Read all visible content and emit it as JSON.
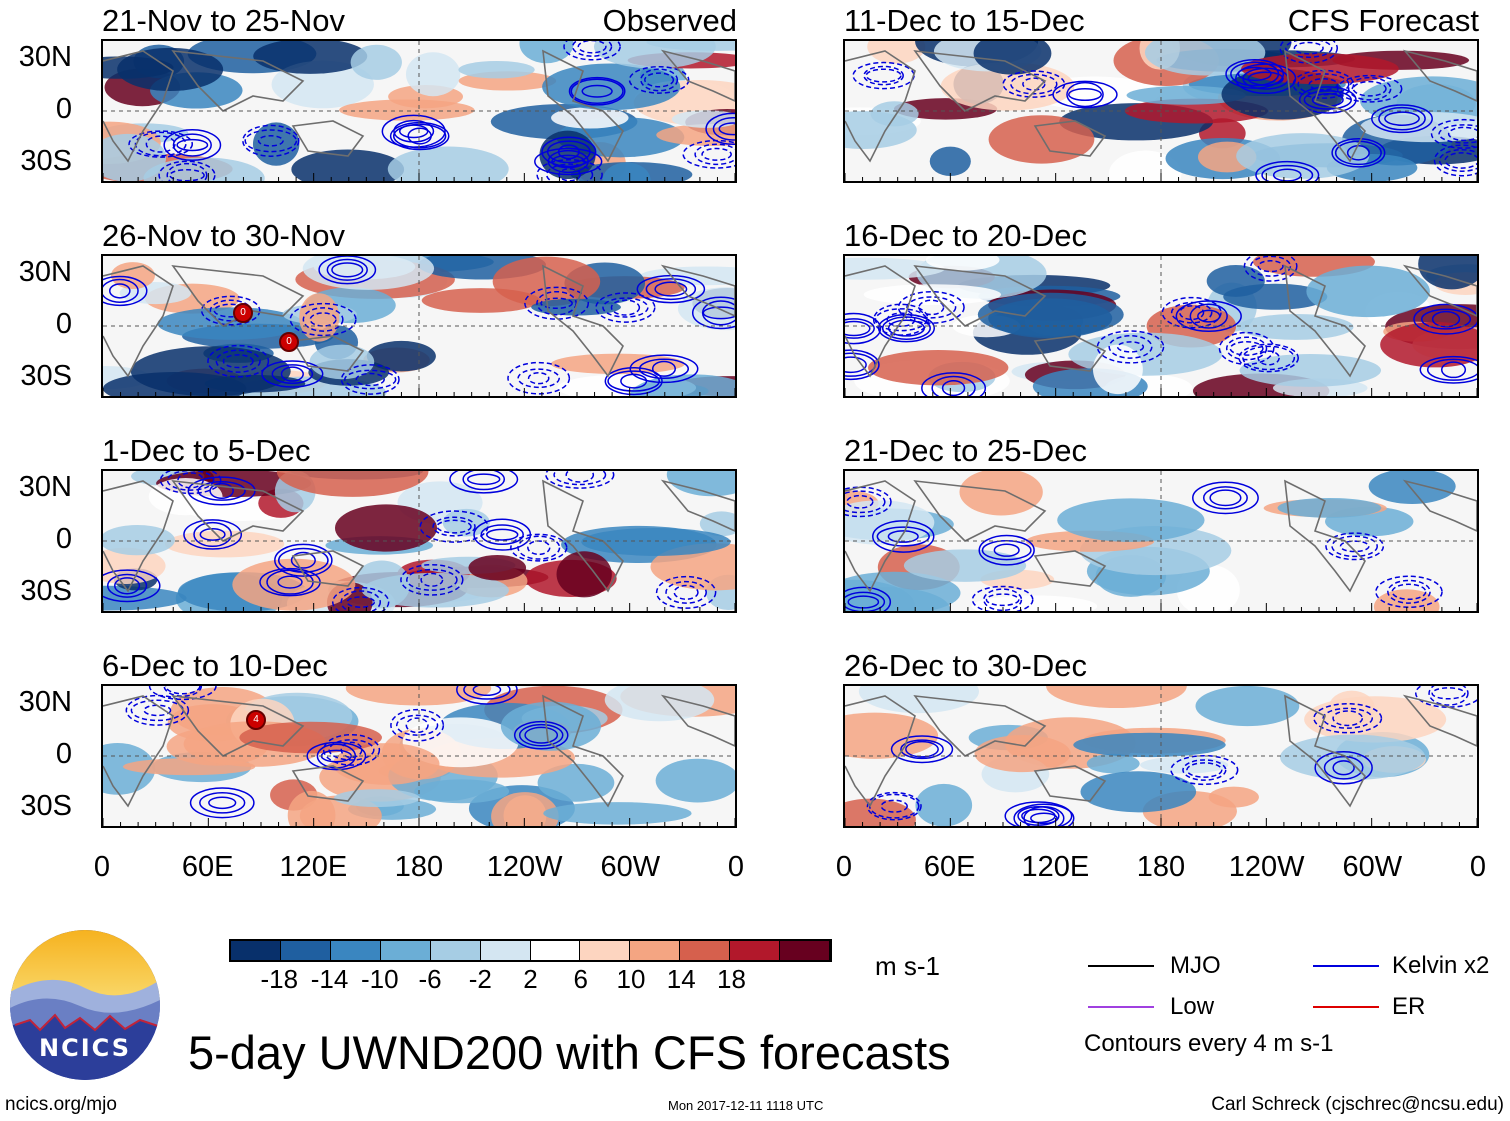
{
  "chart_data": {
    "type": "heatmap",
    "title": "5-day UWND200 with CFS forecasts",
    "variable": "UWND200",
    "units": "m s-1",
    "contour_note": "Contours every 4 m s-1",
    "columns": [
      {
        "label": "Observed",
        "panels": [
          "21-Nov to 25-Nov",
          "26-Nov to 30-Nov",
          "1-Dec to 5-Dec",
          "6-Dec to 10-Dec"
        ]
      },
      {
        "label": "CFS Forecast",
        "panels": [
          "11-Dec to 15-Dec",
          "16-Dec to 20-Dec",
          "21-Dec to 25-Dec",
          "26-Dec to 30-Dec"
        ]
      }
    ],
    "y_ticks": [
      "30N",
      "0",
      "30S"
    ],
    "x_ticks": [
      "0",
      "60E",
      "120E",
      "180",
      "120W",
      "60W",
      "0"
    ],
    "colorbar": {
      "levels": [
        "-18",
        "-14",
        "-10",
        "-6",
        "-2",
        "2",
        "6",
        "10",
        "14",
        "18"
      ],
      "colors": [
        "#08306b",
        "#1f5fa0",
        "#3a86c0",
        "#6baed6",
        "#a6cde4",
        "#d4e6f2",
        "#ffffff",
        "#fdd5c0",
        "#f4a582",
        "#d6604d",
        "#b2182b",
        "#67001f"
      ]
    },
    "legend": [
      {
        "name": "MJO",
        "color": "#000000"
      },
      {
        "name": "Kelvin x2",
        "color": "#0000dd"
      },
      {
        "name": "Low",
        "color": "#a040e0"
      },
      {
        "name": "ER",
        "color": "#dd0000"
      }
    ],
    "storm_markers": [
      {
        "panel": "26-Nov to 30-Nov",
        "label": "0"
      },
      {
        "panel": "26-Nov to 30-Nov",
        "label": "0"
      },
      {
        "panel": "6-Dec to 10-Dec",
        "label": "4"
      }
    ]
  },
  "footer": {
    "logo_text": "NCICS",
    "site": "ncics.org/mjo",
    "timestamp": "Mon 2017-12-11 1118 UTC",
    "author": "Carl Schreck (cjschrec@ncsu.edu)"
  }
}
